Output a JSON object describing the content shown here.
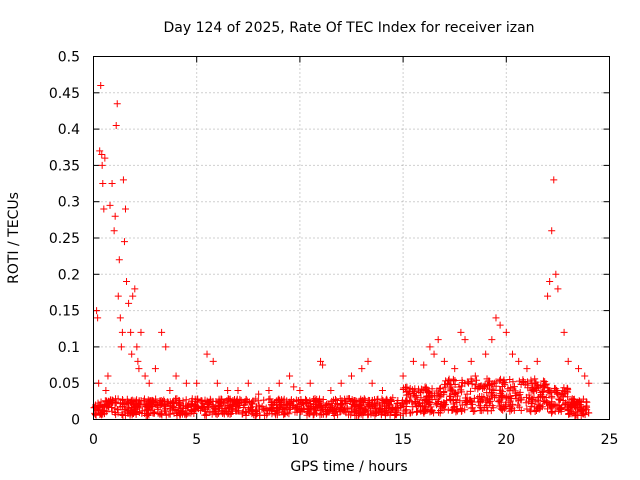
{
  "chart_data": {
    "type": "scatter",
    "title": "Day 124 of 2025, Rate Of TEC Index for receiver izan",
    "xlabel": "GPS time / hours",
    "ylabel": "ROTI / TECUs",
    "xlim": [
      0,
      25
    ],
    "ylim": [
      0,
      0.5
    ],
    "xticks": [
      "0",
      "5",
      "10",
      "15",
      "20",
      "25"
    ],
    "yticks": [
      "0",
      "0.05",
      "0.1",
      "0.15",
      "0.2",
      "0.25",
      "0.3",
      "0.35",
      "0.4",
      "0.45",
      "0.5"
    ],
    "grid": true,
    "marker": "plus",
    "color": "#ff0000",
    "series": [
      {
        "x": [
          0.1,
          0.15,
          0.2,
          0.25,
          0.3,
          0.35,
          0.4,
          0.42,
          0.45,
          0.5,
          0.55,
          0.6,
          0.7,
          0.8,
          0.9,
          1.0,
          1.05,
          1.1,
          1.15,
          1.2,
          1.25,
          1.3,
          1.35,
          1.4,
          1.45,
          1.5,
          1.55,
          1.6,
          1.7,
          1.8,
          1.85,
          1.9,
          2.0,
          2.1,
          2.15,
          2.2,
          2.3,
          2.5,
          2.7,
          3.0,
          3.3,
          3.5,
          3.7,
          4.0,
          4.5,
          5.0,
          5.5,
          5.8,
          6.0,
          6.5,
          7.0,
          7.5,
          8.0,
          8.5,
          9.0,
          9.5,
          9.7,
          10.0,
          10.5,
          11.0,
          11.1,
          11.5,
          12.0,
          12.5,
          13.0,
          13.3,
          13.5,
          14.0,
          14.5,
          15.0,
          15.5,
          16.0,
          16.3,
          16.5,
          16.7,
          17.0,
          17.5,
          17.8,
          18.0,
          18.3,
          18.5,
          19.0,
          19.3,
          19.5,
          19.7,
          20.0,
          20.3,
          20.6,
          21.0,
          21.5,
          22.0,
          22.1,
          22.2,
          22.3,
          22.4,
          22.5,
          22.8,
          23.0,
          23.5,
          23.8,
          24.0
        ],
        "y": [
          0.02,
          0.15,
          0.14,
          0.05,
          0.37,
          0.46,
          0.365,
          0.35,
          0.325,
          0.29,
          0.36,
          0.04,
          0.06,
          0.295,
          0.325,
          0.26,
          0.28,
          0.405,
          0.435,
          0.17,
          0.22,
          0.14,
          0.1,
          0.12,
          0.33,
          0.245,
          0.29,
          0.19,
          0.16,
          0.12,
          0.09,
          0.17,
          0.18,
          0.1,
          0.08,
          0.07,
          0.12,
          0.06,
          0.05,
          0.07,
          0.12,
          0.1,
          0.04,
          0.06,
          0.05,
          0.05,
          0.09,
          0.08,
          0.05,
          0.04,
          0.04,
          0.05,
          0.035,
          0.04,
          0.05,
          0.06,
          0.045,
          0.04,
          0.05,
          0.08,
          0.075,
          0.04,
          0.05,
          0.06,
          0.07,
          0.08,
          0.05,
          0.04,
          0.03,
          0.06,
          0.08,
          0.075,
          0.1,
          0.09,
          0.11,
          0.08,
          0.07,
          0.12,
          0.11,
          0.08,
          0.06,
          0.09,
          0.11,
          0.14,
          0.13,
          0.12,
          0.09,
          0.08,
          0.07,
          0.08,
          0.17,
          0.19,
          0.26,
          0.33,
          0.2,
          0.18,
          0.12,
          0.08,
          0.07,
          0.06,
          0.05
        ]
      }
    ]
  }
}
